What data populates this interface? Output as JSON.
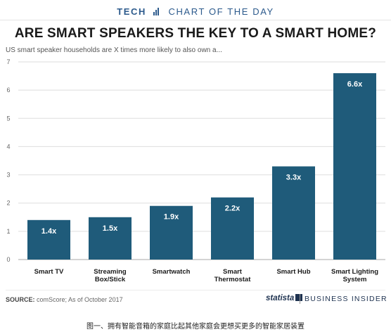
{
  "header": {
    "kicker_brand": "TECH",
    "kicker_text": "CHART OF THE DAY"
  },
  "chart_data": {
    "type": "bar",
    "title": "ARE SMART SPEAKERS THE KEY TO A SMART HOME?",
    "subtitle": "US smart speaker households are X times more likely to also own a...",
    "categories": [
      "Smart TV",
      "Streaming Box/Stick",
      "Smartwatch",
      "Smart Thermostat",
      "Smart Hub",
      "Smart Lighting System"
    ],
    "category_lines": [
      [
        "Smart TV"
      ],
      [
        "Streaming",
        "Box/Stick"
      ],
      [
        "Smartwatch"
      ],
      [
        "Smart",
        "Thermostat"
      ],
      [
        "Smart Hub"
      ],
      [
        "Smart Lighting",
        "System"
      ]
    ],
    "values": [
      1.4,
      1.5,
      1.9,
      2.2,
      3.3,
      6.6
    ],
    "data_labels": [
      "1.4x",
      "1.5x",
      "1.9x",
      "2.2x",
      "3.3x",
      "6.6x"
    ],
    "ylim": [
      0,
      7
    ],
    "yticks": [
      0,
      1,
      2,
      3,
      4,
      5,
      6,
      7
    ],
    "grid": true,
    "bar_color": "#1f5b7a"
  },
  "footer": {
    "source_label": "SOURCE:",
    "source_text": " comScore; As of October 2017",
    "statista": "statista",
    "publisher": "BUSINESS INSIDER"
  },
  "caption": "图一、拥有智能音箱的家庭比起其他家庭会更想买更多的智能家居装置",
  "colors": {
    "brand_blue": "#2c5a8c",
    "bar": "#1f5b7a",
    "publisher": "#1e3250"
  }
}
